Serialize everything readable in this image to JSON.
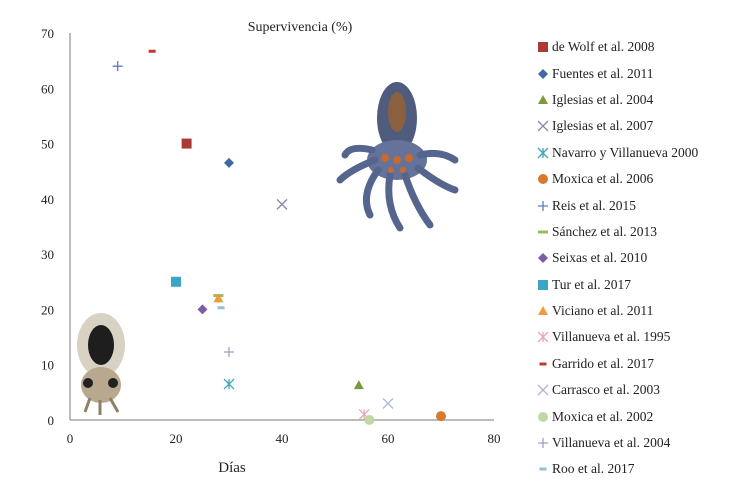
{
  "chart_data": {
    "type": "scatter",
    "title": "Supervivencia (%)",
    "xlabel": "Días",
    "ylabel": "",
    "xlim": [
      0,
      80
    ],
    "ylim": [
      0,
      70
    ],
    "xticks": [
      "0",
      "20",
      "40",
      "60",
      "80"
    ],
    "yticks": [
      "0",
      "10",
      "20",
      "30",
      "40",
      "50",
      "60",
      "70"
    ],
    "grid": false,
    "legend_position": "right",
    "series": [
      {
        "name": "de Wolf et al. 2008",
        "marker": "square",
        "color": "#A93A36",
        "x": [
          22
        ],
        "y": [
          50
        ]
      },
      {
        "name": "Fuentes et al. 2011",
        "marker": "diamond",
        "color": "#3F68A5",
        "x": [
          30
        ],
        "y": [
          46.5
        ]
      },
      {
        "name": "Iglesias et al. 2004",
        "marker": "triangle",
        "color": "#7A9A3E",
        "x": [
          54.5
        ],
        "y": [
          6.3
        ]
      },
      {
        "name": "Iglesias et al. 2007",
        "marker": "x",
        "color": "#8F82AE",
        "x": [
          40
        ],
        "y": [
          39
        ]
      },
      {
        "name": "Navarro y Villanueva  2000",
        "marker": "asterisk",
        "color": "#3DA3BD",
        "x": [
          30
        ],
        "y": [
          6.5
        ]
      },
      {
        "name": "Moxica et al. 2006",
        "marker": "circle",
        "color": "#D9782F",
        "x": [
          70
        ],
        "y": [
          0.7
        ]
      },
      {
        "name": "Reis et al. 2015",
        "marker": "plus",
        "color": "#5B7FBF",
        "x": [
          9
        ],
        "y": [
          64
        ]
      },
      {
        "name": "Sánchez et al. 2013",
        "marker": "dash",
        "color": "#9BBB59",
        "x": [
          28
        ],
        "y": [
          22.5
        ]
      },
      {
        "name": "Seixas et al. 2010",
        "marker": "diamond",
        "color": "#7E5BA6",
        "x": [
          25
        ],
        "y": [
          20
        ]
      },
      {
        "name": "Tur et al. 2017",
        "marker": "square",
        "color": "#3AA6C6",
        "x": [
          20
        ],
        "y": [
          25
        ]
      },
      {
        "name": "Viciano et al. 2011",
        "marker": "triangle",
        "color": "#F39A3C",
        "x": [
          28
        ],
        "y": [
          22
        ]
      },
      {
        "name": "Villanueva et al. 1995",
        "marker": "asterisk",
        "color": "#E8A7AE",
        "x": [
          55.5
        ],
        "y": [
          1
        ]
      },
      {
        "name": "Garrido et al. 2017",
        "marker": "smalldash",
        "color": "#C0392B",
        "x": [
          15.5
        ],
        "y": [
          66.7
        ]
      },
      {
        "name": "Carrasco et al. 2003",
        "marker": "x",
        "color": "#A9B6DA",
        "x": [
          60
        ],
        "y": [
          3
        ]
      },
      {
        "name": "Moxica et al. 2002",
        "marker": "circle",
        "color": "#BFD9A6",
        "x": [
          56.5
        ],
        "y": [
          0
        ]
      },
      {
        "name": "Villanueva et al. 2004",
        "marker": "plus",
        "color": "#A79CC8",
        "x": [
          30
        ],
        "y": [
          12.3
        ]
      },
      {
        "name": "Roo et al. 2017",
        "marker": "smalldash",
        "color": "#8CC3DB",
        "x": [
          28.5
        ],
        "y": [
          20.3
        ]
      }
    ]
  }
}
